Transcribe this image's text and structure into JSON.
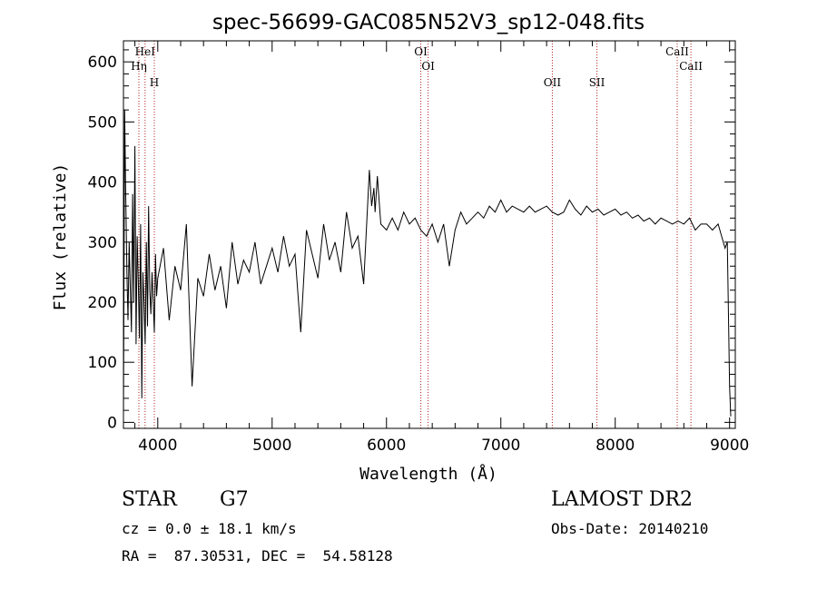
{
  "chart_data": {
    "type": "line",
    "title": "spec-56699-GAC085N52V3_sp12-048.fits",
    "xlabel": "Wavelength (Å)",
    "ylabel": "Flux (relative)",
    "xlim": [
      3700,
      9050
    ],
    "ylim": [
      -10,
      635
    ],
    "x_ticks": [
      4000,
      5000,
      6000,
      7000,
      8000,
      9000
    ],
    "y_ticks": [
      0,
      100,
      200,
      300,
      400,
      500,
      600
    ],
    "grid": false,
    "line_color": "#000000",
    "marker_color": "#b22222",
    "series": [
      {
        "x": [
          3700,
          3710,
          3720,
          3730,
          3740,
          3750,
          3760,
          3770,
          3780,
          3790,
          3800,
          3810,
          3820,
          3830,
          3840,
          3850,
          3860,
          3870,
          3880,
          3890,
          3900,
          3910,
          3920,
          3930,
          3940,
          3950,
          3960,
          3970,
          3980,
          3990,
          4000,
          4050,
          4100,
          4150,
          4200,
          4250,
          4300,
          4350,
          4400,
          4450,
          4500,
          4550,
          4600,
          4650,
          4700,
          4750,
          4800,
          4850,
          4900,
          4950,
          5000,
          5050,
          5100,
          5150,
          5200,
          5250,
          5300,
          5350,
          5400,
          5450,
          5500,
          5550,
          5600,
          5650,
          5700,
          5750,
          5800,
          5850,
          5870,
          5890,
          5900,
          5920,
          5950,
          6000,
          6050,
          6100,
          6150,
          6200,
          6250,
          6300,
          6350,
          6400,
          6450,
          6500,
          6550,
          6600,
          6650,
          6700,
          6750,
          6800,
          6850,
          6900,
          6950,
          7000,
          7050,
          7100,
          7150,
          7200,
          7250,
          7300,
          7350,
          7400,
          7450,
          7500,
          7550,
          7600,
          7650,
          7700,
          7750,
          7800,
          7850,
          7900,
          7950,
          8000,
          8050,
          8100,
          8150,
          8200,
          8250,
          8300,
          8350,
          8400,
          8450,
          8500,
          8550,
          8600,
          8650,
          8700,
          8750,
          8800,
          8850,
          8900,
          8930,
          8960,
          8980,
          9000,
          9010
        ],
        "y": [
          10,
          520,
          380,
          250,
          170,
          300,
          220,
          150,
          380,
          200,
          460,
          130,
          310,
          230,
          140,
          330,
          40,
          250,
          200,
          130,
          300,
          160,
          360,
          220,
          180,
          250,
          200,
          150,
          280,
          210,
          240,
          290,
          170,
          260,
          220,
          330,
          60,
          240,
          210,
          280,
          220,
          260,
          190,
          300,
          230,
          270,
          250,
          300,
          230,
          260,
          290,
          250,
          310,
          260,
          280,
          150,
          320,
          280,
          240,
          330,
          270,
          300,
          250,
          350,
          290,
          310,
          230,
          420,
          360,
          390,
          350,
          410,
          330,
          320,
          340,
          320,
          350,
          330,
          340,
          320,
          310,
          330,
          300,
          330,
          260,
          320,
          350,
          330,
          340,
          350,
          340,
          360,
          350,
          370,
          350,
          360,
          355,
          350,
          360,
          350,
          355,
          360,
          350,
          345,
          350,
          370,
          355,
          345,
          360,
          350,
          355,
          345,
          350,
          355,
          345,
          350,
          340,
          345,
          335,
          340,
          330,
          340,
          335,
          330,
          335,
          330,
          340,
          320,
          330,
          330,
          320,
          330,
          310,
          290,
          300,
          60,
          10
        ]
      }
    ],
    "annotations": [
      {
        "label": "HeI",
        "x": 3889
      },
      {
        "label": "Hη",
        "x": 3835
      },
      {
        "label": "H",
        "x": 3970
      },
      {
        "label": "OI",
        "x": 6364
      },
      {
        "label": "OI",
        "x": 6300
      },
      {
        "label": "OII",
        "x": 7450
      },
      {
        "label": "SII",
        "x": 7840
      },
      {
        "label": "CaII",
        "x": 8662
      },
      {
        "label": "CaII",
        "x": 8542
      }
    ]
  },
  "info": {
    "object_type": "STAR",
    "subclass": "G7",
    "survey": "LAMOST DR2",
    "cz": "cz = 0.0 ± 18.1 km/s",
    "obs_date": "Obs-Date: 20140210",
    "coords": "RA =  87.30531, DEC =  54.58128"
  }
}
